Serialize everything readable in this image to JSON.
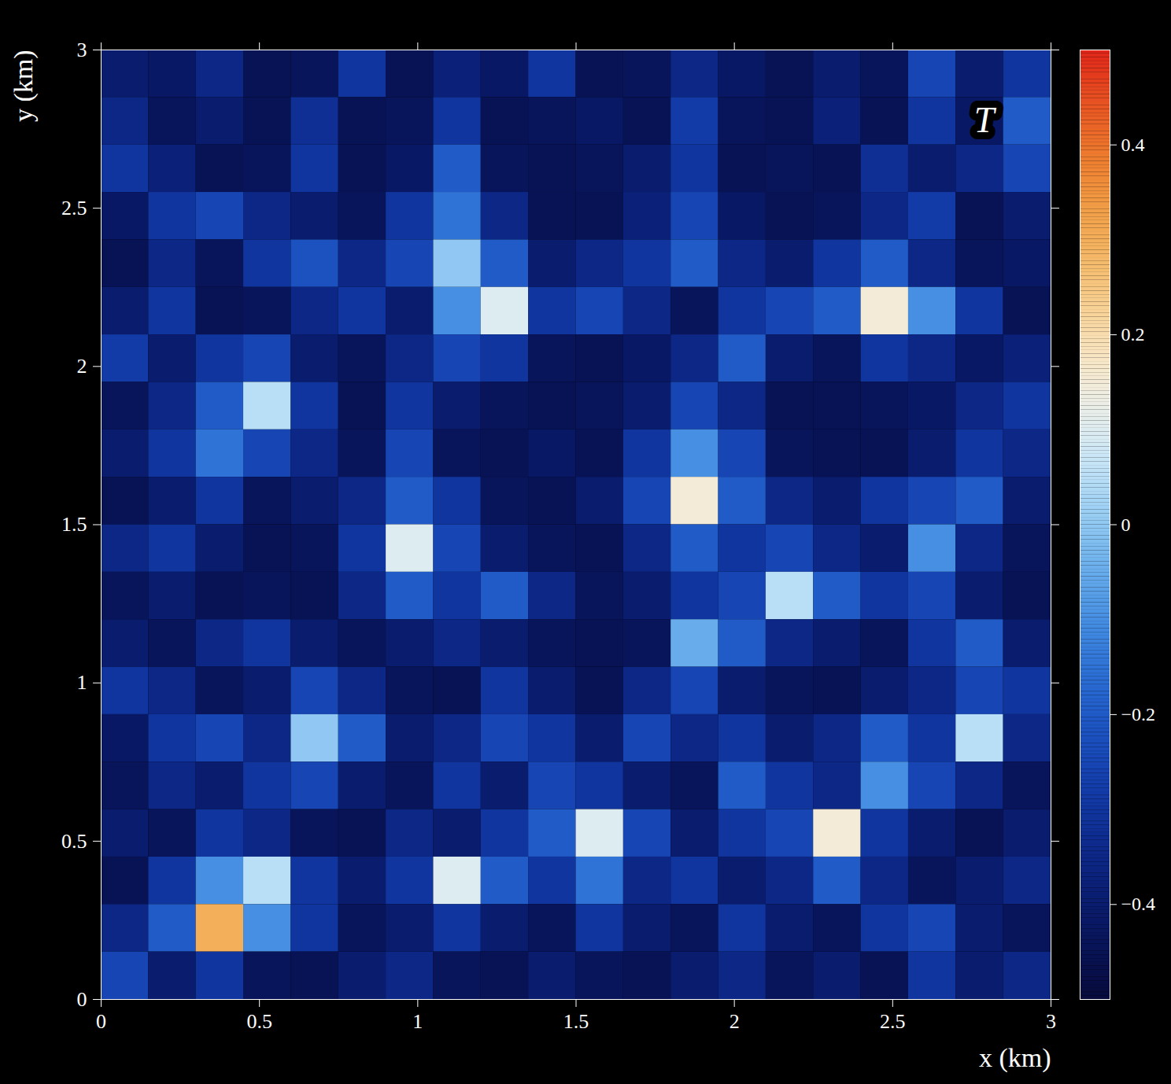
{
  "chart_data": {
    "type": "heatmap",
    "annotation": "T",
    "xlabel": "x (km)",
    "ylabel": "y (km)",
    "xlim": [
      0,
      3
    ],
    "ylim": [
      0,
      3
    ],
    "xticks": [
      0,
      0.5,
      1,
      1.5,
      2,
      2.5,
      3
    ],
    "yticks": [
      0,
      0.5,
      1,
      1.5,
      2,
      2.5,
      3
    ],
    "cells": [
      [
        -0.4,
        -0.42,
        -0.35,
        -0.45,
        -0.44,
        -0.3,
        -0.45,
        -0.38,
        -0.42,
        -0.3,
        -0.45,
        -0.44,
        -0.35,
        -0.42,
        -0.45,
        -0.4,
        -0.44,
        -0.25,
        -0.4,
        -0.3
      ],
      [
        -0.35,
        -0.44,
        -0.4,
        -0.45,
        -0.32,
        -0.45,
        -0.44,
        -0.3,
        -0.45,
        -0.44,
        -0.42,
        -0.45,
        -0.28,
        -0.44,
        -0.45,
        -0.38,
        -0.45,
        -0.3,
        -0.42,
        -0.2
      ],
      [
        -0.3,
        -0.38,
        -0.45,
        -0.44,
        -0.3,
        -0.45,
        -0.42,
        -0.2,
        -0.44,
        -0.45,
        -0.44,
        -0.4,
        -0.3,
        -0.45,
        -0.44,
        -0.45,
        -0.32,
        -0.4,
        -0.35,
        -0.25
      ],
      [
        -0.42,
        -0.3,
        -0.25,
        -0.35,
        -0.4,
        -0.44,
        -0.3,
        -0.15,
        -0.35,
        -0.45,
        -0.45,
        -0.38,
        -0.25,
        -0.42,
        -0.45,
        -0.44,
        -0.35,
        -0.28,
        -0.45,
        -0.4
      ],
      [
        -0.45,
        -0.35,
        -0.44,
        -0.3,
        -0.22,
        -0.35,
        -0.25,
        0.0,
        -0.2,
        -0.4,
        -0.35,
        -0.3,
        -0.2,
        -0.35,
        -0.4,
        -0.3,
        -0.2,
        -0.35,
        -0.44,
        -0.42
      ],
      [
        -0.4,
        -0.3,
        -0.45,
        -0.44,
        -0.35,
        -0.3,
        -0.4,
        -0.1,
        0.1,
        -0.3,
        -0.25,
        -0.35,
        -0.44,
        -0.3,
        -0.25,
        -0.2,
        0.15,
        -0.1,
        -0.3,
        -0.45
      ],
      [
        -0.28,
        -0.4,
        -0.3,
        -0.25,
        -0.4,
        -0.44,
        -0.35,
        -0.25,
        -0.3,
        -0.44,
        -0.45,
        -0.42,
        -0.35,
        -0.2,
        -0.4,
        -0.44,
        -0.3,
        -0.35,
        -0.42,
        -0.38
      ],
      [
        -0.44,
        -0.35,
        -0.2,
        0.05,
        -0.3,
        -0.45,
        -0.3,
        -0.4,
        -0.44,
        -0.45,
        -0.44,
        -0.4,
        -0.25,
        -0.35,
        -0.45,
        -0.45,
        -0.44,
        -0.42,
        -0.35,
        -0.3
      ],
      [
        -0.4,
        -0.3,
        -0.15,
        -0.25,
        -0.35,
        -0.44,
        -0.25,
        -0.44,
        -0.45,
        -0.42,
        -0.45,
        -0.3,
        -0.1,
        -0.25,
        -0.44,
        -0.45,
        -0.45,
        -0.4,
        -0.3,
        -0.35
      ],
      [
        -0.45,
        -0.4,
        -0.3,
        -0.44,
        -0.4,
        -0.35,
        -0.2,
        -0.3,
        -0.44,
        -0.45,
        -0.4,
        -0.25,
        0.15,
        -0.2,
        -0.35,
        -0.4,
        -0.3,
        -0.25,
        -0.2,
        -0.4
      ],
      [
        -0.35,
        -0.3,
        -0.4,
        -0.45,
        -0.44,
        -0.3,
        0.1,
        -0.25,
        -0.4,
        -0.44,
        -0.45,
        -0.35,
        -0.2,
        -0.3,
        -0.25,
        -0.35,
        -0.4,
        -0.1,
        -0.35,
        -0.44
      ],
      [
        -0.44,
        -0.4,
        -0.45,
        -0.44,
        -0.45,
        -0.35,
        -0.2,
        -0.3,
        -0.2,
        -0.35,
        -0.44,
        -0.4,
        -0.3,
        -0.25,
        0.05,
        -0.2,
        -0.3,
        -0.25,
        -0.4,
        -0.45
      ],
      [
        -0.4,
        -0.44,
        -0.35,
        -0.3,
        -0.4,
        -0.44,
        -0.4,
        -0.35,
        -0.4,
        -0.44,
        -0.45,
        -0.44,
        -0.05,
        -0.2,
        -0.35,
        -0.4,
        -0.44,
        -0.3,
        -0.2,
        -0.4
      ],
      [
        -0.3,
        -0.35,
        -0.44,
        -0.4,
        -0.25,
        -0.35,
        -0.44,
        -0.45,
        -0.3,
        -0.4,
        -0.45,
        -0.35,
        -0.25,
        -0.4,
        -0.44,
        -0.45,
        -0.4,
        -0.35,
        -0.25,
        -0.3
      ],
      [
        -0.42,
        -0.3,
        -0.25,
        -0.35,
        0.0,
        -0.2,
        -0.4,
        -0.35,
        -0.25,
        -0.3,
        -0.4,
        -0.25,
        -0.35,
        -0.3,
        -0.4,
        -0.35,
        -0.2,
        -0.3,
        0.05,
        -0.35
      ],
      [
        -0.44,
        -0.35,
        -0.4,
        -0.3,
        -0.25,
        -0.4,
        -0.44,
        -0.3,
        -0.4,
        -0.25,
        -0.3,
        -0.4,
        -0.44,
        -0.2,
        -0.3,
        -0.35,
        -0.1,
        -0.25,
        -0.35,
        -0.44
      ],
      [
        -0.4,
        -0.44,
        -0.3,
        -0.35,
        -0.44,
        -0.45,
        -0.35,
        -0.4,
        -0.3,
        -0.2,
        0.1,
        -0.25,
        -0.4,
        -0.3,
        -0.25,
        0.15,
        -0.3,
        -0.4,
        -0.45,
        -0.4
      ],
      [
        -0.45,
        -0.3,
        -0.1,
        0.05,
        -0.3,
        -0.4,
        -0.3,
        0.1,
        -0.2,
        -0.3,
        -0.15,
        -0.35,
        -0.3,
        -0.4,
        -0.35,
        -0.2,
        -0.35,
        -0.44,
        -0.4,
        -0.35
      ],
      [
        -0.35,
        -0.2,
        0.3,
        -0.1,
        -0.3,
        -0.44,
        -0.4,
        -0.3,
        -0.4,
        -0.44,
        -0.3,
        -0.4,
        -0.44,
        -0.3,
        -0.4,
        -0.44,
        -0.3,
        -0.25,
        -0.4,
        -0.44
      ],
      [
        -0.25,
        -0.4,
        -0.3,
        -0.44,
        -0.45,
        -0.4,
        -0.35,
        -0.44,
        -0.45,
        -0.4,
        -0.44,
        -0.45,
        -0.4,
        -0.35,
        -0.44,
        -0.4,
        -0.45,
        -0.3,
        -0.4,
        -0.35
      ]
    ],
    "colorbar": {
      "lim": [
        -0.5,
        0.5
      ],
      "ticks": [
        {
          "value": -0.4,
          "label": "−0.4"
        },
        {
          "value": -0.2,
          "label": "−0.2"
        },
        0,
        0.2,
        0.4
      ]
    }
  }
}
